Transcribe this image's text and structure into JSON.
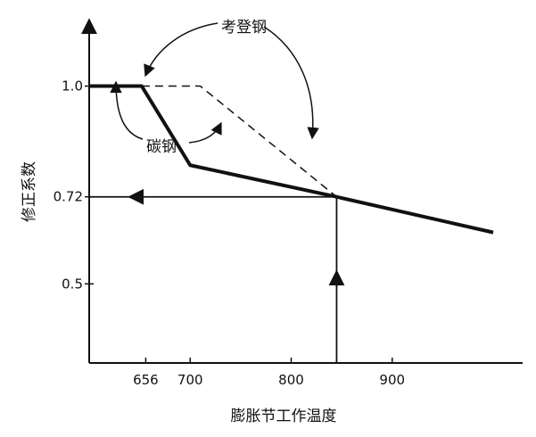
{
  "chart_data": {
    "type": "line",
    "xlabel": "膨胀节工作温度",
    "ylabel": "修正系数",
    "xlim": [
      600,
      1000
    ],
    "ylim": [
      0.3,
      1.15
    ],
    "x_ticks": [
      {
        "value": 656,
        "label": "656"
      },
      {
        "value": 700,
        "label": "700"
      },
      {
        "value": 800,
        "label": "800"
      },
      {
        "value": 900,
        "label": "900"
      }
    ],
    "y_ticks": [
      {
        "value": 1.0,
        "label": "1.0"
      },
      {
        "value": 0.72,
        "label": "0.72"
      },
      {
        "value": 0.5,
        "label": "0.5"
      }
    ],
    "series": [
      {
        "name": "碳钢",
        "style": "solid-thick",
        "x": [
          600,
          652,
          700,
          845,
          1000
        ],
        "y": [
          1.0,
          1.0,
          0.8,
          0.72,
          0.63
        ]
      },
      {
        "name": "考登钢",
        "style": "dashed",
        "x": [
          652,
          710,
          845
        ],
        "y": [
          1.0,
          1.0,
          0.72
        ]
      }
    ],
    "reference_lines": [
      {
        "from": [
          600,
          0.72
        ],
        "to": [
          845,
          0.72
        ]
      },
      {
        "from": [
          845,
          0.3
        ],
        "to": [
          845,
          0.72
        ]
      }
    ],
    "annotations": [
      {
        "label": "考登钢",
        "target_series": "考登钢"
      },
      {
        "label": "碳钢",
        "target_series": "碳钢"
      }
    ],
    "grid": false,
    "colors": {
      "line": "#111111",
      "axis": "#111111"
    }
  }
}
